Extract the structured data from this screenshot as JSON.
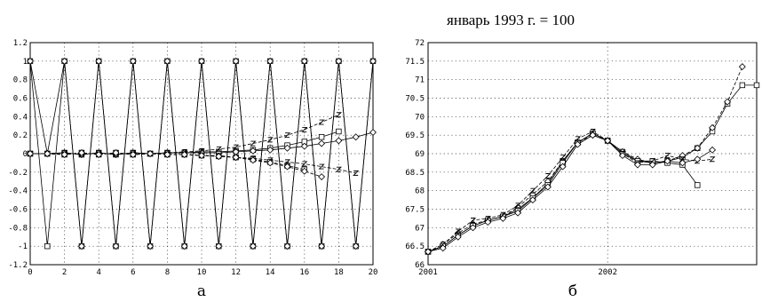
{
  "chart_data": [
    {
      "type": "line",
      "panel_label": "а",
      "xlim": [
        0,
        20
      ],
      "ylim": [
        -1.2,
        1.2
      ],
      "xticks": [
        "0",
        "2",
        "4",
        "6",
        "8",
        "10",
        "12",
        "14",
        "16",
        "18",
        "20"
      ],
      "yticks": [
        "1.2",
        "1",
        "0.8",
        "0.6",
        "0.4",
        "0.2",
        "0",
        "-0.2",
        "-0.4",
        "-0.6",
        "-0.8",
        "-1",
        "-1.2"
      ],
      "grid": true,
      "series": [
        {
          "marker": "square",
          "dash": "solid",
          "x": [
            0,
            1,
            2,
            3,
            4,
            5,
            6,
            7,
            8,
            9,
            10,
            11,
            12,
            13,
            14,
            15,
            16,
            17,
            18,
            19,
            20
          ],
          "y": [
            1,
            -1,
            1,
            -1,
            1,
            -1,
            1,
            -1,
            1,
            -1,
            1,
            -1,
            1,
            -1,
            1,
            -1,
            1,
            -1,
            1,
            -1,
            1
          ]
        },
        {
          "marker": "diamond",
          "dash": "solid",
          "x": [
            0,
            1,
            2,
            3,
            4,
            5,
            6,
            7,
            8,
            9,
            10,
            11,
            12,
            13,
            14,
            15,
            16,
            17,
            18,
            19,
            20
          ],
          "y": [
            1,
            0,
            1,
            -1,
            1,
            -1,
            1,
            -1,
            1,
            -1,
            1,
            -1,
            1,
            -1,
            1,
            -1,
            1,
            -1,
            1,
            -1,
            1
          ]
        },
        {
          "marker": "square",
          "dash": "solid",
          "x": [
            0,
            1,
            2,
            3,
            4,
            5,
            6,
            7,
            8,
            9,
            10,
            11,
            12,
            13,
            14,
            15,
            16,
            17,
            18
          ],
          "y": [
            0,
            0,
            0.01,
            -0.01,
            0.01,
            -0.01,
            0.01,
            0,
            0.01,
            0.01,
            0.02,
            0.02,
            0.03,
            0.04,
            0.06,
            0.09,
            0.13,
            0.18,
            0.24
          ]
        },
        {
          "marker": "diamond",
          "dash": "solid",
          "x": [
            0,
            1,
            2,
            3,
            4,
            5,
            6,
            7,
            8,
            9,
            10,
            11,
            12,
            13,
            14,
            15,
            16,
            17,
            18,
            19,
            20
          ],
          "y": [
            0,
            0,
            0.01,
            -0.01,
            0.01,
            -0.01,
            0.01,
            0,
            0.01,
            0.01,
            0.01,
            0.01,
            0.02,
            0.03,
            0.04,
            0.06,
            0.08,
            0.11,
            0.14,
            0.18,
            0.23
          ]
        },
        {
          "marker": "z",
          "dash": "dashed",
          "x": [
            0,
            1,
            2,
            3,
            4,
            5,
            6,
            7,
            8,
            9,
            10,
            11,
            12,
            13,
            14,
            15,
            16,
            17,
            18
          ],
          "y": [
            0,
            0,
            0.01,
            -0.01,
            0.01,
            -0.01,
            0.01,
            0,
            0.01,
            0.02,
            0.03,
            0.05,
            0.07,
            0.11,
            0.15,
            0.2,
            0.26,
            0.34,
            0.42
          ]
        },
        {
          "marker": "square",
          "dash": "dashed",
          "x": [
            0,
            1,
            2,
            3,
            4,
            5,
            6,
            7,
            8,
            9,
            10,
            11,
            12,
            13,
            14,
            15,
            16
          ],
          "y": [
            0,
            0,
            -0.01,
            0.01,
            -0.01,
            0.01,
            -0.01,
            0,
            -0.01,
            -0.01,
            -0.02,
            -0.02,
            -0.04,
            -0.06,
            -0.09,
            -0.13,
            -0.17
          ]
        },
        {
          "marker": "z",
          "dash": "dashed",
          "x": [
            0,
            1,
            2,
            3,
            4,
            5,
            6,
            7,
            8,
            9,
            10,
            11,
            12,
            13,
            14,
            15,
            16,
            17,
            18,
            19
          ],
          "y": [
            0,
            0,
            -0.01,
            0.01,
            -0.01,
            0.01,
            -0.01,
            0,
            -0.01,
            -0.01,
            -0.02,
            -0.03,
            -0.04,
            -0.05,
            -0.07,
            -0.09,
            -0.11,
            -0.14,
            -0.17,
            -0.21
          ]
        },
        {
          "marker": "diamond",
          "dash": "dashed",
          "x": [
            0,
            1,
            2,
            3,
            4,
            5,
            6,
            7,
            8,
            9,
            10,
            11,
            12,
            13,
            14,
            15,
            16,
            17
          ],
          "y": [
            0,
            0,
            -0.01,
            0.01,
            -0.01,
            0.01,
            -0.01,
            0,
            -0.01,
            -0.01,
            -0.02,
            -0.03,
            -0.04,
            -0.07,
            -0.1,
            -0.14,
            -0.19,
            -0.25
          ]
        }
      ]
    },
    {
      "type": "line",
      "panel_label": "б",
      "note": "январь 1993 г. = 100",
      "xlim": [
        2001,
        2002.83
      ],
      "ylim": [
        66,
        72
      ],
      "xticks": [
        {
          "value": 2001,
          "label": "2001"
        },
        {
          "value": 2002,
          "label": "2002"
        }
      ],
      "yticks": [
        "72",
        "71.5",
        "71",
        "70.5",
        "70",
        "69.5",
        "69",
        "68.5",
        "68",
        "67.5",
        "67",
        "66.5",
        "66"
      ],
      "grid": true,
      "series": [
        {
          "marker": "square",
          "dash": "solid",
          "x": [
            2001,
            2001.083,
            2001.167,
            2001.25,
            2001.333,
            2001.417,
            2001.5,
            2001.583,
            2001.667,
            2001.75,
            2001.833,
            2001.917,
            2002,
            2002.083,
            2002.167,
            2002.25,
            2002.333,
            2002.417,
            2002.5,
            2002.583,
            2002.667,
            2002.75,
            2002.83
          ],
          "y": [
            66.35,
            66.5,
            66.8,
            67.05,
            67.2,
            67.3,
            67.5,
            67.8,
            68.2,
            68.8,
            69.3,
            69.55,
            69.35,
            69.05,
            68.8,
            68.75,
            68.8,
            68.9,
            69.15,
            69.6,
            70.35,
            70.85,
            70.85
          ]
        },
        {
          "marker": "diamond",
          "dash": "dashed",
          "x": [
            2001,
            2001.083,
            2001.167,
            2001.25,
            2001.333,
            2001.417,
            2001.5,
            2001.583,
            2001.667,
            2001.75,
            2001.833,
            2001.917,
            2002,
            2002.083,
            2002.167,
            2002.25,
            2002.333,
            2002.417,
            2002.5,
            2002.583,
            2002.667,
            2002.75
          ],
          "y": [
            66.35,
            66.55,
            66.85,
            67.1,
            67.2,
            67.3,
            67.55,
            67.9,
            68.25,
            68.8,
            69.3,
            69.5,
            69.35,
            69.05,
            68.85,
            68.75,
            68.8,
            68.95,
            69.15,
            69.7,
            70.4,
            71.35
          ]
        },
        {
          "marker": "square",
          "dash": "solid",
          "x": [
            2001,
            2001.083,
            2001.167,
            2001.25,
            2001.333,
            2001.417,
            2001.5,
            2001.583,
            2001.667,
            2001.75,
            2001.833,
            2001.917,
            2002,
            2002.083,
            2002.167,
            2002.25,
            2002.333,
            2002.417,
            2002.5
          ],
          "y": [
            66.35,
            66.5,
            66.8,
            67.05,
            67.2,
            67.3,
            67.45,
            67.8,
            68.15,
            68.75,
            69.3,
            69.55,
            69.35,
            69.0,
            68.8,
            68.8,
            68.75,
            68.7,
            68.15
          ]
        },
        {
          "marker": "z",
          "dash": "dashed",
          "x": [
            2001,
            2001.083,
            2001.167,
            2001.25,
            2001.333,
            2001.417,
            2001.5,
            2001.583,
            2001.667,
            2001.75,
            2001.833,
            2001.917,
            2002,
            2002.083,
            2002.167,
            2002.25,
            2002.333,
            2002.417,
            2002.5,
            2002.583
          ],
          "y": [
            66.35,
            66.55,
            66.9,
            67.2,
            67.25,
            67.35,
            67.6,
            68.0,
            68.4,
            68.9,
            69.4,
            69.6,
            69.35,
            69.0,
            68.75,
            68.8,
            68.95,
            68.85,
            68.8,
            68.85
          ]
        },
        {
          "marker": "diamond",
          "dash": "solid",
          "x": [
            2001,
            2001.083,
            2001.167,
            2001.25,
            2001.333,
            2001.417,
            2001.5,
            2001.583,
            2001.667,
            2001.75,
            2001.833,
            2001.917,
            2002,
            2002.083,
            2002.167,
            2002.25,
            2002.333,
            2002.417,
            2002.5,
            2002.583
          ],
          "y": [
            66.35,
            66.45,
            66.75,
            67.0,
            67.15,
            67.25,
            67.4,
            67.75,
            68.1,
            68.65,
            69.25,
            69.5,
            69.35,
            68.95,
            68.7,
            68.7,
            68.8,
            68.75,
            68.85,
            69.1
          ]
        }
      ]
    }
  ]
}
